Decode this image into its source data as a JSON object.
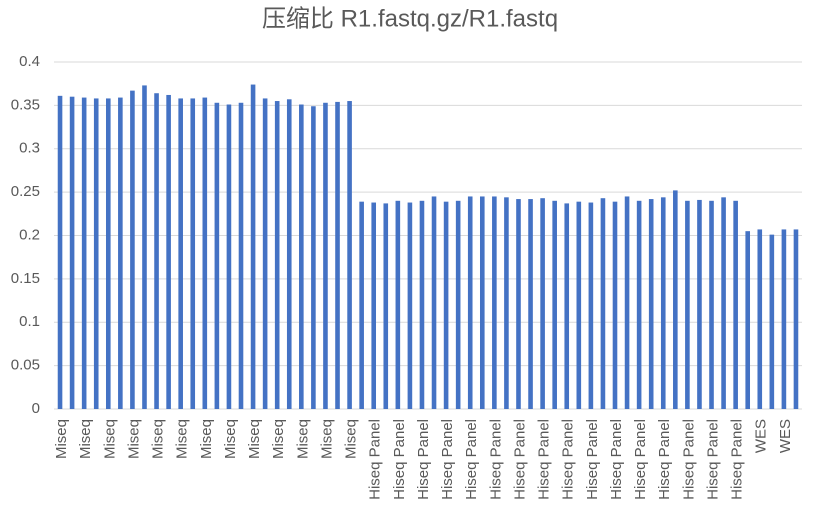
{
  "chart_data": {
    "type": "bar",
    "title": "压缩比 R1.fastq.gz/R1.fastq",
    "categories": [
      "Miseq",
      null,
      "Miseq",
      null,
      "Miseq",
      null,
      "Miseq",
      null,
      "Miseq",
      null,
      "Miseq",
      null,
      "Miseq",
      null,
      "Miseq",
      null,
      "Miseq",
      null,
      "Miseq",
      null,
      "Miseq",
      null,
      "Miseq",
      null,
      "Miseq",
      null,
      "Hiseq Panel",
      null,
      "Hiseq Panel",
      null,
      "Hiseq Panel",
      null,
      "Hiseq Panel",
      null,
      "Hiseq Panel",
      null,
      "Hiseq Panel",
      null,
      "Hiseq Panel",
      null,
      "Hiseq Panel",
      null,
      "Hiseq Panel",
      null,
      "Hiseq Panel",
      null,
      "Hiseq Panel",
      null,
      "Hiseq Panel",
      null,
      "Hiseq Panel",
      null,
      "Hiseq Panel",
      null,
      "Hiseq Panel",
      null,
      "Hiseq Panel",
      null,
      "WES",
      null,
      "WES",
      null
    ],
    "values": [
      0.361,
      0.36,
      0.359,
      0.358,
      0.358,
      0.359,
      0.367,
      0.373,
      0.364,
      0.362,
      0.358,
      0.358,
      0.359,
      0.353,
      0.351,
      0.353,
      0.374,
      0.358,
      0.355,
      0.357,
      0.351,
      0.349,
      0.353,
      0.354,
      0.355,
      0.239,
      0.238,
      0.237,
      0.24,
      0.238,
      0.24,
      0.245,
      0.239,
      0.24,
      0.245,
      0.245,
      0.245,
      0.244,
      0.242,
      0.242,
      0.243,
      0.24,
      0.237,
      0.239,
      0.238,
      0.243,
      0.239,
      0.245,
      0.24,
      0.242,
      0.244,
      0.252,
      0.24,
      0.241,
      0.24,
      0.244,
      0.24,
      0.205,
      0.207,
      0.201,
      0.207,
      0.207
    ],
    "color": "#4472c4",
    "ylim": [
      0,
      0.4
    ],
    "yticks": [
      0,
      0.05,
      0.1,
      0.15,
      0.2,
      0.25,
      0.3,
      0.35,
      0.4
    ],
    "grid": true
  }
}
